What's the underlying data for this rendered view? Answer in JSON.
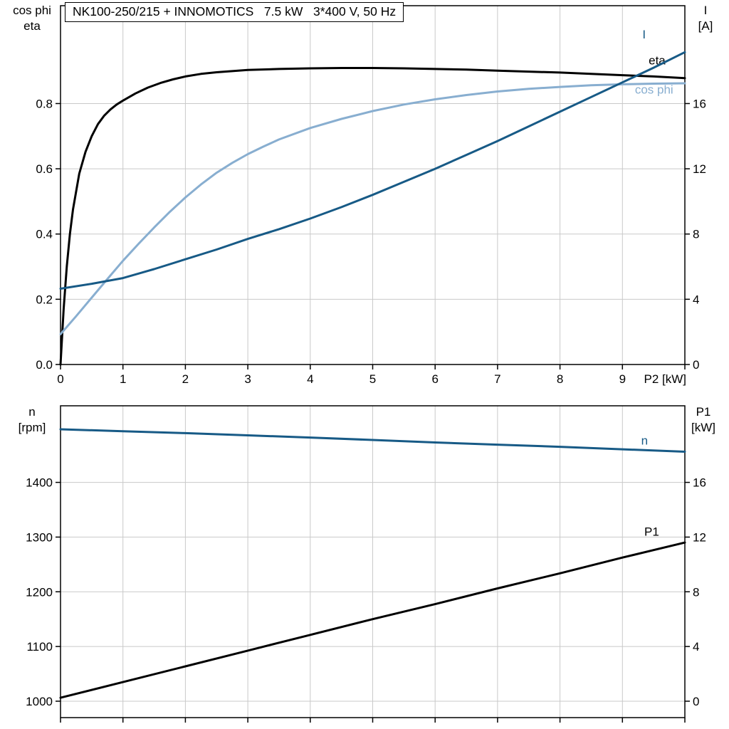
{
  "colors": {
    "black": "#000000",
    "dark_blue": "#175a86",
    "light_blue": "#88aed0",
    "grid": "#c9c9c9",
    "axis": "#000000"
  },
  "chart_data": [
    {
      "type": "line",
      "title": "NK100-250/215 + INNOMOTICS   7.5 kW   3*400 V, 50 Hz",
      "x_axis": {
        "label": "P2 [kW]",
        "range": [
          0,
          10
        ],
        "ticks": [
          {
            "v": 0,
            "l": "0"
          },
          {
            "v": 1,
            "l": "1"
          },
          {
            "v": 2,
            "l": "2"
          },
          {
            "v": 3,
            "l": "3"
          },
          {
            "v": 4,
            "l": "4"
          },
          {
            "v": 5,
            "l": "5"
          },
          {
            "v": 6,
            "l": "6"
          },
          {
            "v": 7,
            "l": "7"
          },
          {
            "v": 8,
            "l": "8"
          },
          {
            "v": 9,
            "l": "9"
          },
          {
            "v": 10,
            "l": ""
          }
        ]
      },
      "left_axis": {
        "title_lines": [
          "cos phi",
          "eta"
        ],
        "range": [
          0,
          1.1
        ],
        "ticks": [
          {
            "v": 0,
            "l": "0.0"
          },
          {
            "v": 0.2,
            "l": "0.2"
          },
          {
            "v": 0.4,
            "l": "0.4"
          },
          {
            "v": 0.6,
            "l": "0.6"
          },
          {
            "v": 0.8,
            "l": "0.8"
          }
        ]
      },
      "right_axis": {
        "title_lines": [
          "I",
          "[A]"
        ],
        "range": [
          0,
          22
        ],
        "ticks": [
          {
            "v": 0,
            "l": "0"
          },
          {
            "v": 4,
            "l": "4"
          },
          {
            "v": 8,
            "l": "8"
          },
          {
            "v": 12,
            "l": "12"
          },
          {
            "v": 16,
            "l": "16"
          }
        ]
      },
      "series": [
        {
          "name": "eta",
          "axis": "left",
          "color": "black",
          "width": 3,
          "label": {
            "text": "eta",
            "x": 9.42,
            "v": 0.92,
            "anchor": "start"
          },
          "points": [
            [
              0,
              0
            ],
            [
              0.05,
              0.17
            ],
            [
              0.1,
              0.3
            ],
            [
              0.15,
              0.4
            ],
            [
              0.2,
              0.475
            ],
            [
              0.3,
              0.585
            ],
            [
              0.4,
              0.652
            ],
            [
              0.5,
              0.7
            ],
            [
              0.6,
              0.737
            ],
            [
              0.7,
              0.763
            ],
            [
              0.8,
              0.782
            ],
            [
              0.9,
              0.797
            ],
            [
              1,
              0.809
            ],
            [
              1.2,
              0.831
            ],
            [
              1.4,
              0.849
            ],
            [
              1.6,
              0.863
            ],
            [
              1.8,
              0.874
            ],
            [
              2,
              0.883
            ],
            [
              2.25,
              0.891
            ],
            [
              2.5,
              0.896
            ],
            [
              3,
              0.903
            ],
            [
              3.5,
              0.906
            ],
            [
              4,
              0.908
            ],
            [
              4.5,
              0.909
            ],
            [
              5,
              0.909
            ],
            [
              5.5,
              0.908
            ],
            [
              6,
              0.906
            ],
            [
              6.5,
              0.904
            ],
            [
              7,
              0.901
            ],
            [
              7.5,
              0.898
            ],
            [
              8,
              0.895
            ],
            [
              8.5,
              0.891
            ],
            [
              9,
              0.887
            ],
            [
              9.5,
              0.883
            ],
            [
              10,
              0.878
            ]
          ]
        },
        {
          "name": "cos phi",
          "axis": "left",
          "color": "light_blue",
          "width": 3,
          "label": {
            "text": "cos phi",
            "x": 9.2,
            "v": 0.83,
            "anchor": "start"
          },
          "points": [
            [
              0,
              0.093
            ],
            [
              0.25,
              0.148
            ],
            [
              0.5,
              0.205
            ],
            [
              0.75,
              0.262
            ],
            [
              1,
              0.318
            ],
            [
              1.25,
              0.37
            ],
            [
              1.5,
              0.42
            ],
            [
              1.75,
              0.468
            ],
            [
              2,
              0.512
            ],
            [
              2.25,
              0.552
            ],
            [
              2.5,
              0.588
            ],
            [
              2.75,
              0.618
            ],
            [
              3,
              0.645
            ],
            [
              3.25,
              0.668
            ],
            [
              3.5,
              0.69
            ],
            [
              4,
              0.725
            ],
            [
              4.5,
              0.753
            ],
            [
              5,
              0.777
            ],
            [
              5.5,
              0.797
            ],
            [
              6,
              0.813
            ],
            [
              6.5,
              0.826
            ],
            [
              7,
              0.837
            ],
            [
              7.5,
              0.845
            ],
            [
              8,
              0.851
            ],
            [
              8.5,
              0.856
            ],
            [
              9,
              0.859
            ],
            [
              9.5,
              0.861
            ],
            [
              10,
              0.862
            ]
          ]
        },
        {
          "name": "I",
          "axis": "right",
          "color": "dark_blue",
          "width": 3,
          "label": {
            "text": "I",
            "x": 9.32,
            "v": 20,
            "anchor": "start"
          },
          "points": [
            [
              0,
              4.65
            ],
            [
              0.5,
              4.95
            ],
            [
              1,
              5.3
            ],
            [
              1.5,
              5.85
            ],
            [
              2,
              6.45
            ],
            [
              2.5,
              7.05
            ],
            [
              3,
              7.7
            ],
            [
              3.5,
              8.3
            ],
            [
              4,
              8.95
            ],
            [
              4.5,
              9.65
            ],
            [
              5,
              10.4
            ],
            [
              5.5,
              11.2
            ],
            [
              6,
              12.0
            ],
            [
              6.5,
              12.85
            ],
            [
              7,
              13.7
            ],
            [
              7.5,
              14.6
            ],
            [
              8,
              15.5
            ],
            [
              8.5,
              16.4
            ],
            [
              9,
              17.3
            ],
            [
              9.5,
              18.2
            ],
            [
              10,
              19.15
            ]
          ]
        }
      ]
    },
    {
      "type": "line",
      "title": "",
      "x_axis": {
        "label": "",
        "range": [
          0,
          10
        ],
        "ticks": [
          {
            "v": 0,
            "l": ""
          },
          {
            "v": 1,
            "l": ""
          },
          {
            "v": 2,
            "l": ""
          },
          {
            "v": 3,
            "l": ""
          },
          {
            "v": 4,
            "l": ""
          },
          {
            "v": 5,
            "l": ""
          },
          {
            "v": 6,
            "l": ""
          },
          {
            "v": 7,
            "l": ""
          },
          {
            "v": 8,
            "l": ""
          },
          {
            "v": 9,
            "l": ""
          },
          {
            "v": 10,
            "l": ""
          }
        ]
      },
      "left_axis": {
        "title_lines": [
          "n",
          "[rpm]"
        ],
        "range": [
          970,
          1540
        ],
        "ticks": [
          {
            "v": 1000,
            "l": "1000"
          },
          {
            "v": 1100,
            "l": "1100"
          },
          {
            "v": 1200,
            "l": "1200"
          },
          {
            "v": 1300,
            "l": "1300"
          },
          {
            "v": 1400,
            "l": "1400"
          }
        ]
      },
      "right_axis": {
        "title_lines": [
          "P1",
          "[kW]"
        ],
        "range": [
          -1.2,
          21.6
        ],
        "ticks": [
          {
            "v": 0,
            "l": "0"
          },
          {
            "v": 4,
            "l": "4"
          },
          {
            "v": 8,
            "l": "8"
          },
          {
            "v": 12,
            "l": "12"
          },
          {
            "v": 16,
            "l": "16"
          }
        ]
      },
      "series": [
        {
          "name": "n",
          "axis": "left",
          "color": "dark_blue",
          "width": 3,
          "label": {
            "text": "n",
            "x": 9.3,
            "v": 1469,
            "anchor": "start"
          },
          "points": [
            [
              0,
              1497
            ],
            [
              1,
              1493.5
            ],
            [
              2,
              1490
            ],
            [
              3,
              1486
            ],
            [
              4,
              1482
            ],
            [
              5,
              1477.5
            ],
            [
              6,
              1473
            ],
            [
              7,
              1469
            ],
            [
              8,
              1465
            ],
            [
              9,
              1460.5
            ],
            [
              10,
              1456
            ]
          ]
        },
        {
          "name": "P1",
          "axis": "right",
          "color": "black",
          "width": 3,
          "label": {
            "text": "P1",
            "x": 9.35,
            "v": 12.1,
            "anchor": "start"
          },
          "points": [
            [
              0,
              0.25
            ],
            [
              1,
              1.4
            ],
            [
              2,
              2.55
            ],
            [
              3,
              3.7
            ],
            [
              4,
              4.85
            ],
            [
              5,
              6.0
            ],
            [
              6,
              7.1
            ],
            [
              7,
              8.25
            ],
            [
              8,
              9.35
            ],
            [
              9,
              10.5
            ],
            [
              10,
              11.6
            ]
          ]
        }
      ]
    }
  ]
}
